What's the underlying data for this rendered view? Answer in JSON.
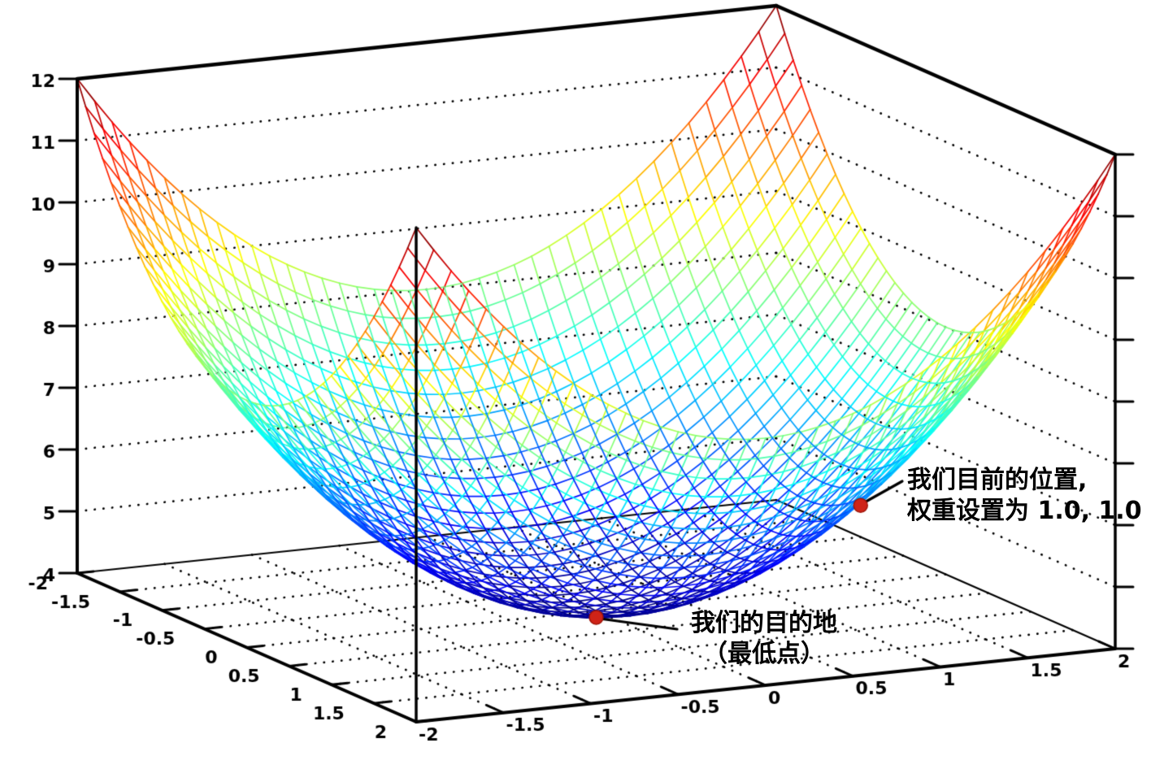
{
  "figure": {
    "background": "#ffffff",
    "annotations": {
      "current_position": {
        "line1": "我们目前的位置,",
        "line2": "权重设置为 1.0, 1.0"
      },
      "destination": {
        "line1": "我们的目的地",
        "line2": "（最低点）"
      }
    }
  },
  "chart_data": {
    "type": "surface",
    "title": "",
    "xlabel": "",
    "ylabel": "",
    "zlabel": "",
    "surface_equation": "z = x^2 + y^2 + 4",
    "surface_coeffs": {
      "x2": 1,
      "y2": 1,
      "c": 4
    },
    "x_range": [
      -2,
      2
    ],
    "y_range": [
      -2,
      2
    ],
    "z_range": [
      4,
      12
    ],
    "grid_step": 0.1,
    "floor_grid_step": 0.5,
    "colormap": "jet",
    "wall_grid": "dotted",
    "x_tick_labels": [
      "-2",
      "-1.5",
      "-1",
      "-0.5",
      "0",
      "0.5",
      "1",
      "1.5",
      "2"
    ],
    "y_tick_labels": [
      "-2",
      "-1.5",
      "-1",
      "-0.5",
      "0",
      "0.5",
      "1",
      "1.5",
      "2"
    ],
    "z_tick_labels": [
      "4",
      "5",
      "6",
      "7",
      "8",
      "9",
      "10",
      "11",
      "12"
    ],
    "x_ticks": [
      -2,
      -1.5,
      -1,
      -0.5,
      0,
      0.5,
      1,
      1.5,
      2
    ],
    "y_ticks": [
      -2,
      -1.5,
      -1,
      -0.5,
      0,
      0.5,
      1,
      1.5,
      2
    ],
    "z_ticks": [
      4,
      5,
      6,
      7,
      8,
      9,
      10,
      11,
      12
    ],
    "markers": [
      {
        "x": 1,
        "y": 1,
        "z": 6,
        "color": "#cf2318",
        "label": "我们目前的位置, 权重设置为 1.0, 1.0"
      },
      {
        "x": 0,
        "y": 0,
        "z": 4,
        "color": "#cf2318",
        "label": "我们的目的地（最低点）"
      }
    ],
    "marker_color": "#cf2318",
    "line_color_axes": "#000000"
  }
}
